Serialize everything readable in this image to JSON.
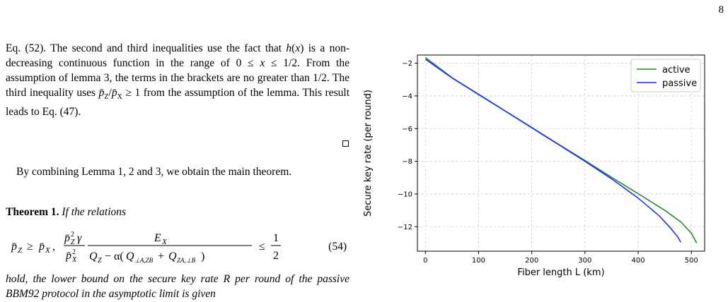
{
  "page_number": "8",
  "paragraph1": "Eq. (52). The second and third inequalities use the fact that h(x) is a non-decreasing continuous function in the range of 0 ≤ x ≤ 1/2. From the assumption of lemma 3, the terms in the brackets are no greater than 1/2. The third inequality uses p̄Z/p̄X ≥ 1 from the assumption of the lemma. This result leads to Eq. (47).",
  "paragraph2": "By combining Lemma 1, 2 and 3, we obtain the main theorem.",
  "theorem_label": "Theorem 1.",
  "theorem_text": "If the relations",
  "equation_number": "(54)",
  "tail_text": "hold, the lower bound on the secure key rate R per round of the passive BBM92 protocol in the asymptotic limit is given",
  "chart_data": {
    "type": "line",
    "xlabel": "Fiber length L (km)",
    "ylabel": "Secure key rate (per round)",
    "xlim": [
      -15,
      525
    ],
    "ylim": [
      -13.5,
      -1.5
    ],
    "xticks": [
      0,
      100,
      200,
      300,
      400,
      500
    ],
    "yticks": [
      -2,
      -4,
      -6,
      -8,
      -10,
      -12
    ],
    "grid": true,
    "legend_position": "top-right",
    "series": [
      {
        "name": "active",
        "color": "#2a8a2a",
        "x": [
          0,
          50,
          100,
          150,
          200,
          250,
          300,
          350,
          400,
          450,
          480,
          500,
          510
        ],
        "y": [
          -1.65,
          -2.88,
          -3.9,
          -4.92,
          -5.93,
          -6.95,
          -7.95,
          -8.98,
          -9.98,
          -11.0,
          -11.7,
          -12.4,
          -13.0
        ]
      },
      {
        "name": "passive",
        "color": "#1f2fff",
        "x": [
          0,
          50,
          100,
          150,
          200,
          250,
          300,
          350,
          400,
          440,
          460,
          475,
          480
        ],
        "y": [
          -1.75,
          -2.9,
          -3.92,
          -4.93,
          -5.95,
          -6.97,
          -8.0,
          -9.07,
          -10.25,
          -11.35,
          -12.05,
          -12.65,
          -12.95
        ]
      }
    ]
  }
}
